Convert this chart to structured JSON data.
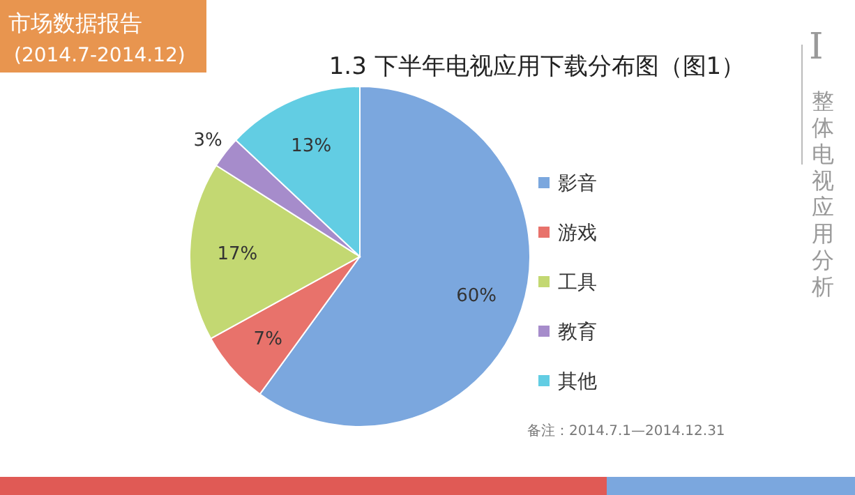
{
  "chart_data": {
    "type": "pie",
    "title": "1.3 下半年电视应用下载分布图（图1）",
    "categories": [
      "影音",
      "游戏",
      "工具",
      "教育",
      "其他"
    ],
    "values": [
      60,
      7,
      17,
      3,
      13
    ],
    "colors": [
      "#7ba7de",
      "#e8726b",
      "#c3d872",
      "#a68ccb",
      "#62cde3"
    ],
    "value_labels": [
      "60%",
      "7%",
      "17%",
      "3%",
      "13%"
    ],
    "legend": "right",
    "annotations": [
      "市场数据报告",
      "(2014.7-2014.12)",
      "备注：2014.7.1—2014.12.31",
      "I",
      "整体电视应用分析"
    ]
  }
}
